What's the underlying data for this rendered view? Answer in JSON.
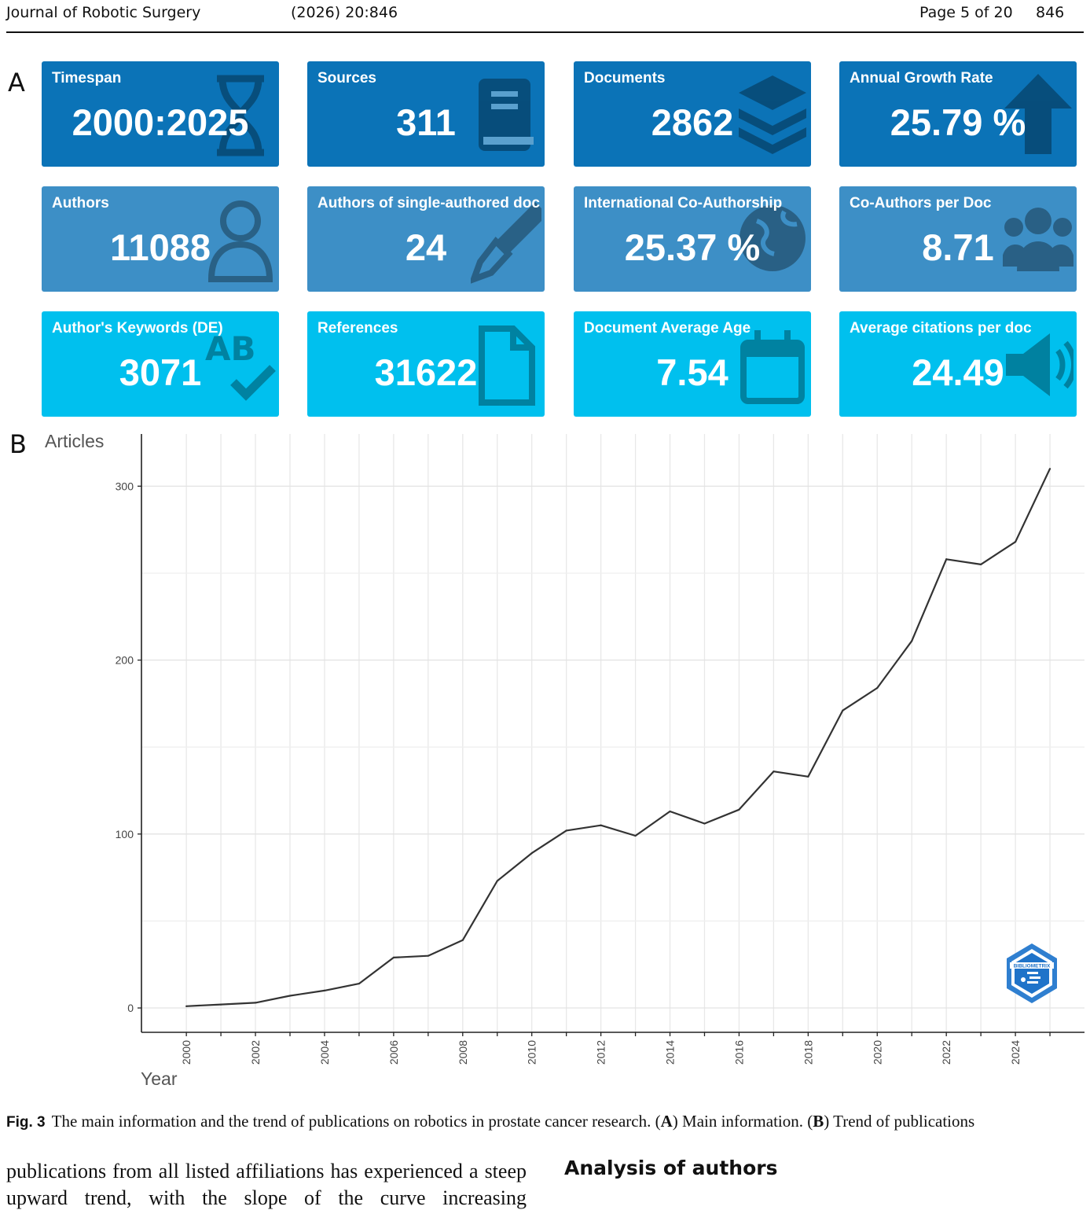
{
  "header": {
    "journal": "Journal of Robotic Surgery",
    "citation": "(2026)  20:846",
    "page": "Page 5 of 20",
    "article_number": "846"
  },
  "panel_a": {
    "letter": "A",
    "cards": [
      {
        "label": "Timespan",
        "value": "2000:2025",
        "style": "dark",
        "icon": "hourglass-icon"
      },
      {
        "label": "Sources",
        "value": "311",
        "style": "dark",
        "icon": "book-icon"
      },
      {
        "label": "Documents",
        "value": "2862",
        "style": "dark",
        "icon": "layers-icon"
      },
      {
        "label": "Annual Growth Rate",
        "value": "25.79 %",
        "style": "dark",
        "icon": "arrow-up-icon"
      },
      {
        "label": "Authors",
        "value": "11088",
        "style": "mid",
        "icon": "user-icon"
      },
      {
        "label": "Authors of single-authored doc",
        "value": "24",
        "style": "mid",
        "icon": "pen-nib-icon"
      },
      {
        "label": "International Co-Authorship",
        "value": "25.37 %",
        "style": "mid",
        "icon": "globe-icon"
      },
      {
        "label": "Co-Authors per Doc",
        "value": "8.71",
        "style": "mid",
        "icon": "users-icon"
      },
      {
        "label": "Author's Keywords (DE)",
        "value": "3071",
        "style": "light",
        "icon": "spell-check-icon"
      },
      {
        "label": "References",
        "value": "31622",
        "style": "light",
        "icon": "file-icon"
      },
      {
        "label": "Document Average Age",
        "value": "7.54",
        "style": "light",
        "icon": "calendar-icon"
      },
      {
        "label": "Average citations per doc",
        "value": "24.49",
        "style": "light",
        "icon": "volume-icon"
      }
    ]
  },
  "panel_b": {
    "letter": "B",
    "logo_text": "BIBLIOMETRIX"
  },
  "chart_data": {
    "type": "line",
    "ylabel": "Articles",
    "xlabel": "Year",
    "x": [
      2000,
      2001,
      2002,
      2003,
      2004,
      2005,
      2006,
      2007,
      2008,
      2009,
      2010,
      2011,
      2012,
      2013,
      2014,
      2015,
      2016,
      2017,
      2018,
      2019,
      2020,
      2021,
      2022,
      2023,
      2024,
      2025
    ],
    "series": [
      {
        "values": [
          1,
          2,
          3,
          7,
          10,
          14,
          29,
          30,
          39,
          73,
          89,
          102,
          105,
          99,
          113,
          106,
          114,
          136,
          133,
          171,
          184,
          211,
          258,
          255,
          268,
          310
        ]
      }
    ],
    "xticks": [
      "2000",
      "2002",
      "2004",
      "2006",
      "2008",
      "2010",
      "2012",
      "2014",
      "2016",
      "2018",
      "2020",
      "2022",
      "2024"
    ],
    "yticks": [
      "0",
      "100",
      "200",
      "300"
    ],
    "xlim": [
      1998.7,
      2026
    ],
    "ylim": [
      -14,
      330
    ],
    "grid": true,
    "line_color": "#333333"
  },
  "caption": {
    "fig_label": "Fig. 3",
    "text_1": "The main information and the trend of publications on robotics in prostate cancer research. (",
    "a": "A",
    "text_2": ") Main information. (",
    "b": "B",
    "text_3": ") Trend of publications"
  },
  "body": {
    "paragraph": "publications from all listed affiliations has experienced a steep upward trend, with the slope of the curve increasing",
    "section_heading": "Analysis of authors"
  }
}
